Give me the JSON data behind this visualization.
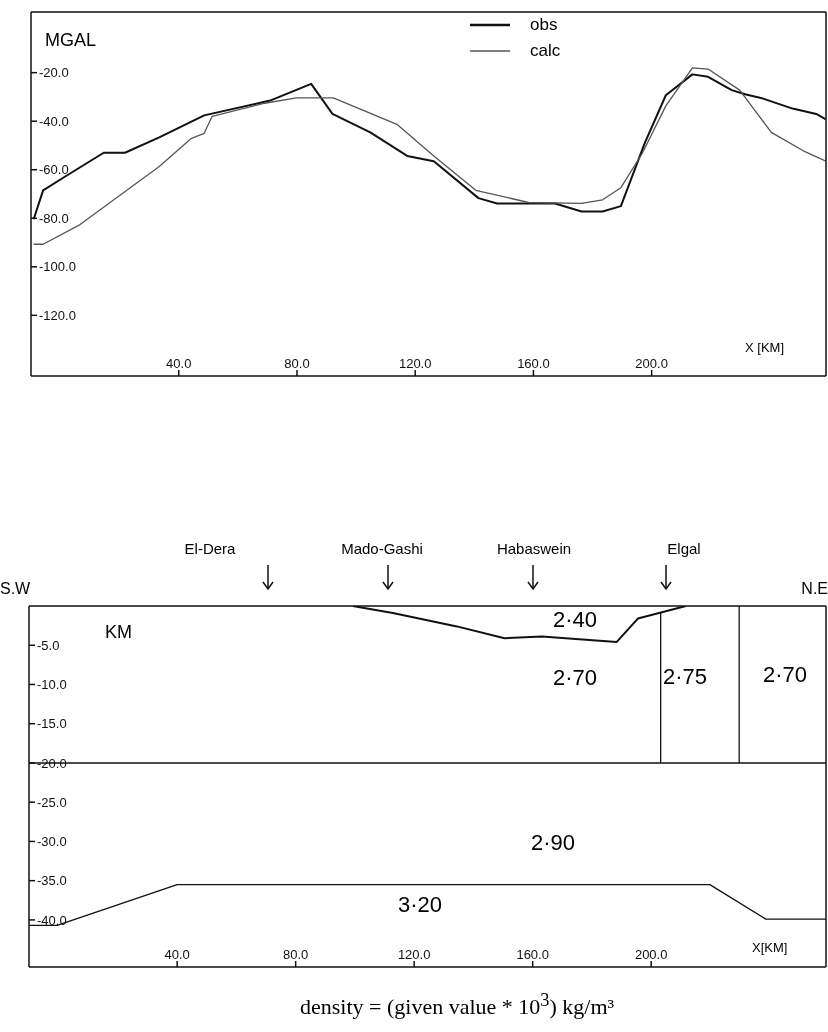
{
  "chart_data": [
    {
      "type": "line",
      "ylabel": "MGAL",
      "xlabel": "X [KM]",
      "xlim": [
        -10,
        259
      ],
      "ylim": [
        -145,
        5
      ],
      "xticks": [
        {
          "value": 40,
          "label": "40.0"
        },
        {
          "value": 80,
          "label": "80.0"
        },
        {
          "value": 120,
          "label": "120.0"
        },
        {
          "value": 160,
          "label": "160.0"
        },
        {
          "value": 200,
          "label": "200.0"
        }
      ],
      "yticks": [
        {
          "value": -20,
          "label": "-20.0"
        },
        {
          "value": -40,
          "label": "-40.0"
        },
        {
          "value": -60,
          "label": "-60.0"
        },
        {
          "value": -80,
          "label": "-80.0"
        },
        {
          "value": -100,
          "label": "-100.0"
        },
        {
          "value": -120,
          "label": "-120.0"
        }
      ],
      "grid": false,
      "legend": "top",
      "series": [
        {
          "name": "obs",
          "color": "#111111",
          "x": [
            -9.1,
            -5.9,
            1.3,
            14.6,
            21.8,
            33.4,
            48.6,
            70.9,
            84.8,
            92,
            104.8,
            117.3,
            126.3,
            141.4,
            147.7,
            167.3,
            176.3,
            183.4,
            189.6,
            197.7,
            204.8,
            213.8,
            219.1,
            227.1,
            231.6,
            237,
            247.7,
            255.7,
            258.8
          ],
          "values": [
            -80.4,
            -68.5,
            -63,
            -53,
            -53,
            -46.7,
            -37.6,
            -31.5,
            -24.6,
            -37,
            -44.6,
            -54.3,
            -56.5,
            -71.7,
            -73.9,
            -73.9,
            -77.2,
            -77.2,
            -75,
            -48.9,
            -29.3,
            -20.7,
            -21.7,
            -27.2,
            -28.9,
            -30.4,
            -34.8,
            -37,
            -39.1
          ]
        },
        {
          "name": "calc",
          "color": "#555555",
          "x": [
            -9.1,
            -5.9,
            6.6,
            33.4,
            44.1,
            48.6,
            51.3,
            69.1,
            79.8,
            92.3,
            113.8,
            126.3,
            140.5,
            158.4,
            176.3,
            183.4,
            189.6,
            196.8,
            204.8,
            213.8,
            219.1,
            229.8,
            240.5,
            251.3,
            259
          ],
          "values": [
            -90.7,
            -90.7,
            -82.6,
            -58.7,
            -47.2,
            -45,
            -38,
            -32.6,
            -30.4,
            -30.4,
            -41.3,
            -54.3,
            -68.5,
            -73.5,
            -73.9,
            -72.4,
            -67.4,
            -53.3,
            -33.7,
            -18,
            -18.5,
            -27.2,
            -44.6,
            -52.2,
            -56.5
          ]
        }
      ]
    },
    {
      "type": "line",
      "ylabel": "KM",
      "xlabel": "X[KM]",
      "xlim": [
        -10,
        259
      ],
      "ylim": [
        -46,
        0
      ],
      "xticks": [
        {
          "value": 40,
          "label": "40.0"
        },
        {
          "value": 80,
          "label": "80.0"
        },
        {
          "value": 120,
          "label": "120.0"
        },
        {
          "value": 160,
          "label": "160.0"
        },
        {
          "value": 200,
          "label": "200.0"
        }
      ],
      "yticks": [
        {
          "value": -5,
          "label": "-5.0"
        },
        {
          "value": -10,
          "label": "-10.0"
        },
        {
          "value": -15,
          "label": "-15.0"
        },
        {
          "value": -20,
          "label": "-20.0"
        },
        {
          "value": -25,
          "label": "-25.0"
        },
        {
          "value": -30,
          "label": "-30.0"
        },
        {
          "value": -35,
          "label": "-35.0"
        },
        {
          "value": -40,
          "label": "-40.0"
        }
      ],
      "grid": false,
      "ref_lines": [
        {
          "axis": "y",
          "value": -20
        }
      ],
      "series": [
        {
          "color": "#111111",
          "x": [
            99.3,
            112.8,
            134.4,
            150.5,
            163.1,
            188.3,
            195.5,
            211.7
          ],
          "values": [
            0,
            -0.9,
            -2.6,
            -4.1,
            -3.9,
            -4.6,
            -1.6,
            0
          ]
        },
        {
          "color": "#111111",
          "x": [
            203.2,
            203.2
          ],
          "values": [
            -0.9,
            -20
          ]
        },
        {
          "color": "#111111",
          "x": [
            229.7,
            229.7
          ],
          "values": [
            0,
            -20
          ]
        },
        {
          "color": "#111111",
          "x": [
            -10,
            -0.5,
            40,
            219.8,
            238.7,
            259
          ],
          "values": [
            -40.7,
            -40.7,
            -35.5,
            -35.5,
            -39.9,
            -39.9
          ]
        }
      ],
      "annotations": [
        "S.W",
        "N.E",
        "density = (given value * 10$^{3}$)  kg/m³",
        "2·40",
        "2·70",
        "2·75",
        "2·70",
        "2·90",
        "3·20",
        "El-Dera",
        "Mado-Gashi",
        "Habaswein",
        "Elgal"
      ]
    }
  ]
}
